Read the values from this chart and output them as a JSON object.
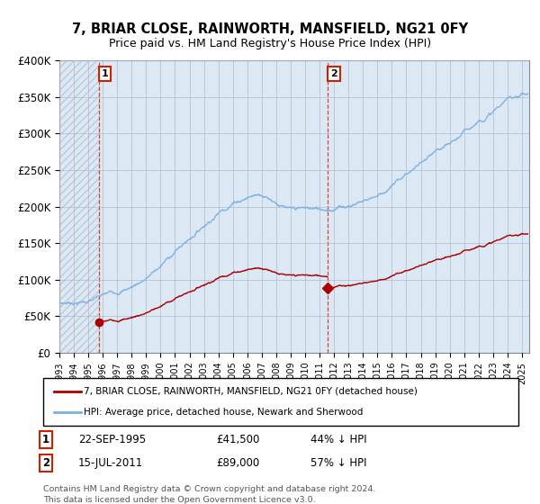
{
  "title": "7, BRIAR CLOSE, RAINWORTH, MANSFIELD, NG21 0FY",
  "subtitle": "Price paid vs. HM Land Registry's House Price Index (HPI)",
  "ylim": [
    0,
    400000
  ],
  "yticks": [
    0,
    50000,
    100000,
    150000,
    200000,
    250000,
    300000,
    350000,
    400000
  ],
  "ytick_labels": [
    "£0",
    "£50K",
    "£100K",
    "£150K",
    "£200K",
    "£250K",
    "£300K",
    "£350K",
    "£400K"
  ],
  "xlim_start": 1993.0,
  "xlim_end": 2025.5,
  "hpi_color": "#7ab0e0",
  "price_color": "#aa0000",
  "plot_bg_color": "#dde8f5",
  "hatch_color": "#c0c8d8",
  "grid_color": "#aabbd0",
  "ann_box_color": "#cc2200",
  "legend_line1": "7, BRIAR CLOSE, RAINWORTH, MANSFIELD, NG21 0FY (detached house)",
  "legend_line2": "HPI: Average price, detached house, Newark and Sherwood",
  "footer": "Contains HM Land Registry data © Crown copyright and database right 2024.\nThis data is licensed under the Open Government Licence v3.0.",
  "sale1_x": 1995.72,
  "sale1_y": 41500,
  "sale2_x": 2011.54,
  "sale2_y": 89000,
  "hpi_anchors_x": [
    1993,
    1994,
    1995,
    1996,
    1997,
    1998,
    1999,
    2000,
    2001,
    2002,
    2003,
    2004,
    2005,
    2006,
    2007,
    2008,
    2009,
    2010,
    2011,
    2012,
    2013,
    2014,
    2015,
    2016,
    2017,
    2018,
    2019,
    2020,
    2021,
    2022,
    2023,
    2024,
    2025
  ],
  "hpi_anchors_y": [
    68000,
    70000,
    73000,
    78000,
    84000,
    92000,
    105000,
    120000,
    140000,
    158000,
    178000,
    197000,
    212000,
    220000,
    225000,
    215000,
    200000,
    198000,
    196000,
    200000,
    205000,
    212000,
    220000,
    232000,
    248000,
    262000,
    272000,
    278000,
    295000,
    315000,
    330000,
    345000,
    355000
  ]
}
